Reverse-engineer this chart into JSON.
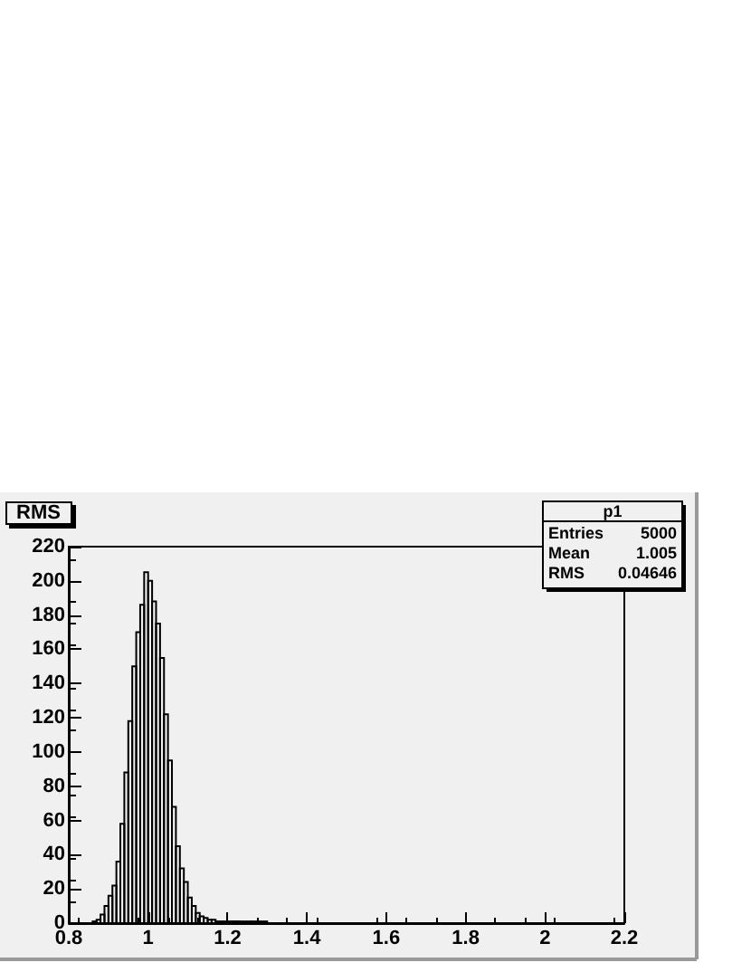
{
  "chart_data": {
    "type": "histogram",
    "title": "RMS",
    "bins": [
      0.86,
      0.87,
      0.88,
      0.89,
      0.9,
      0.91,
      0.92,
      0.93,
      0.94,
      0.95,
      0.96,
      0.97,
      0.98,
      0.99,
      1.0,
      1.01,
      1.02,
      1.03,
      1.04,
      1.05,
      1.06,
      1.07,
      1.08,
      1.09,
      1.1,
      1.11,
      1.12,
      1.13,
      1.14,
      1.15,
      1.16,
      1.17,
      1.18,
      1.19,
      1.2,
      1.21,
      1.23,
      1.26,
      1.3
    ],
    "values": [
      1,
      2,
      5,
      10,
      16,
      22,
      36,
      58,
      88,
      118,
      150,
      170,
      186,
      205,
      200,
      188,
      175,
      155,
      122,
      95,
      68,
      45,
      32,
      24,
      15,
      10,
      6,
      4,
      3,
      2,
      2,
      1,
      1,
      1,
      1,
      1,
      1,
      1
    ],
    "color": "#000000",
    "xlim": [
      0.8,
      2.2
    ],
    "xticks": [
      0.8,
      1,
      1.2,
      1.4,
      1.6,
      1.8,
      2,
      2.2
    ],
    "ylim": [
      0,
      220
    ],
    "yticks": [
      0,
      20,
      40,
      60,
      80,
      100,
      120,
      140,
      160,
      180,
      200,
      220
    ],
    "annotations": [
      "p1",
      "Entries 5000",
      "Mean 1.005",
      "RMS 0.04646"
    ]
  }
}
